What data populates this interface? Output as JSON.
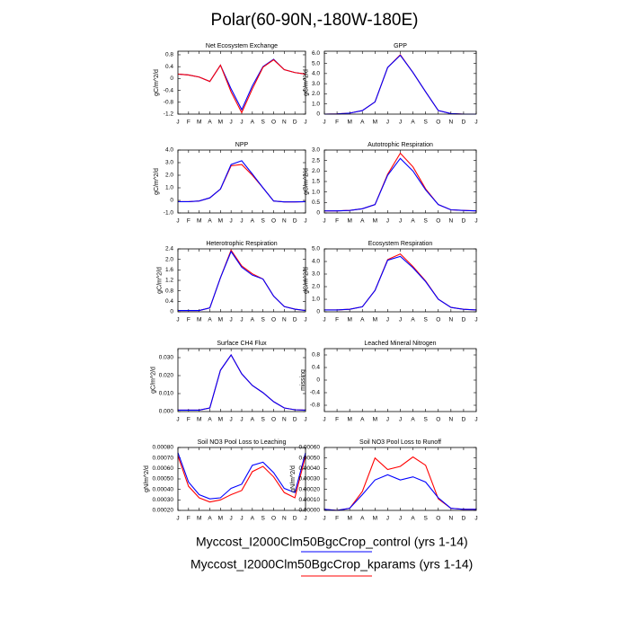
{
  "title": "Polar(60-90N,-180W-180E)",
  "chart_data": [
    {
      "type": "line",
      "title": "Net Ecosystem Exchange",
      "ylabel": "gC/m^2/d",
      "categories": [
        "J",
        "F",
        "M",
        "A",
        "M",
        "J",
        "J",
        "A",
        "S",
        "O",
        "N",
        "D",
        "J"
      ],
      "ylim": [
        -1.2,
        0.92
      ],
      "yticks": [
        -1.2,
        -0.8,
        -0.4,
        0,
        0.4,
        0.8
      ],
      "series": [
        {
          "name": "Myccost_I2000Clm50BgcCrop_control (yrs 1-14)",
          "color": "#0000ff",
          "values": [
            0.15,
            0.12,
            0.05,
            -0.1,
            0.45,
            -0.35,
            -1.05,
            -0.25,
            0.4,
            0.65,
            0.3,
            0.2,
            0.15
          ]
        },
        {
          "name": "Myccost_I2000Clm50BgcCrop_kparams (yrs 1-14)",
          "color": "#ff0000",
          "values": [
            0.15,
            0.12,
            0.05,
            -0.1,
            0.45,
            -0.45,
            -1.15,
            -0.35,
            0.38,
            0.63,
            0.3,
            0.2,
            0.15
          ]
        }
      ]
    },
    {
      "type": "line",
      "title": "GPP",
      "ylabel": "gC/m^2/d",
      "categories": [
        "J",
        "F",
        "M",
        "A",
        "M",
        "J",
        "J",
        "A",
        "S",
        "O",
        "N",
        "D",
        "J"
      ],
      "ylim": [
        0,
        6.2
      ],
      "yticks": [
        0,
        {
          "value": 1,
          "label": "1.0"
        },
        {
          "value": 2,
          "label": "2.0"
        },
        {
          "value": 3,
          "label": "3.0"
        },
        {
          "value": 4,
          "label": "4.0"
        },
        {
          "value": 5,
          "label": "5.0"
        },
        {
          "value": 6,
          "label": "6.0"
        }
      ],
      "series": [
        {
          "color": "#ff0000",
          "values": [
            0,
            0.02,
            0.1,
            0.35,
            1.2,
            4.6,
            5.85,
            4.1,
            2.2,
            0.35,
            0.05,
            0,
            0
          ]
        },
        {
          "color": "#0000ff",
          "values": [
            0,
            0.02,
            0.1,
            0.35,
            1.2,
            4.6,
            5.8,
            4.1,
            2.2,
            0.35,
            0.05,
            0,
            0
          ]
        }
      ]
    },
    {
      "type": "line",
      "title": "NPP",
      "ylabel": "gC/m^2/d",
      "categories": [
        "J",
        "F",
        "M",
        "A",
        "M",
        "J",
        "J",
        "A",
        "S",
        "O",
        "N",
        "D",
        "J"
      ],
      "ylim": [
        -1,
        4
      ],
      "yticks": [
        {
          "value": -1,
          "label": "-1.0"
        },
        0,
        {
          "value": 1,
          "label": "1.0"
        },
        {
          "value": 2,
          "label": "2.0"
        },
        {
          "value": 3,
          "label": "3.0"
        },
        {
          "value": 4,
          "label": "4.0"
        }
      ],
      "series": [
        {
          "color": "#ff0000",
          "values": [
            -0.1,
            -0.1,
            -0.05,
            0.2,
            0.9,
            2.75,
            2.85,
            2.0,
            1.0,
            -0.05,
            -0.12,
            -0.12,
            -0.1
          ]
        },
        {
          "color": "#0000ff",
          "values": [
            -0.1,
            -0.1,
            -0.05,
            0.2,
            0.9,
            2.85,
            3.15,
            2.1,
            1.0,
            -0.05,
            -0.12,
            -0.12,
            -0.1
          ]
        }
      ]
    },
    {
      "type": "line",
      "title": "Autotrophic Respiration",
      "ylabel": "gC/m^2/d",
      "categories": [
        "J",
        "F",
        "M",
        "A",
        "M",
        "J",
        "J",
        "A",
        "S",
        "O",
        "N",
        "D",
        "J"
      ],
      "ylim": [
        0,
        3
      ],
      "yticks": [
        0,
        0.5,
        {
          "value": 1,
          "label": "1.0"
        },
        1.5,
        {
          "value": 2,
          "label": "2.0"
        },
        2.5,
        {
          "value": 3,
          "label": "3.0"
        }
      ],
      "series": [
        {
          "color": "#ff0000",
          "values": [
            0.1,
            0.1,
            0.12,
            0.2,
            0.4,
            1.85,
            2.85,
            2.2,
            1.15,
            0.4,
            0.15,
            0.12,
            0.1
          ]
        },
        {
          "color": "#0000ff",
          "values": [
            0.1,
            0.1,
            0.12,
            0.2,
            0.4,
            1.8,
            2.6,
            2.0,
            1.1,
            0.4,
            0.15,
            0.12,
            0.1
          ]
        }
      ]
    },
    {
      "type": "line",
      "title": "Heterotrophic Respiration",
      "ylabel": "gC/m^2/d",
      "categories": [
        "J",
        "F",
        "M",
        "A",
        "M",
        "J",
        "J",
        "A",
        "S",
        "O",
        "N",
        "D",
        "J"
      ],
      "ylim": [
        0,
        2.4
      ],
      "yticks": [
        0,
        0.4,
        0.8,
        1.2,
        1.6,
        {
          "value": 2,
          "label": "2.0"
        },
        2.4
      ],
      "series": [
        {
          "color": "#ff0000",
          "values": [
            0.05,
            0.05,
            0.05,
            0.15,
            1.3,
            2.35,
            1.75,
            1.45,
            1.25,
            0.6,
            0.2,
            0.1,
            0.05
          ]
        },
        {
          "color": "#0000ff",
          "values": [
            0.05,
            0.05,
            0.05,
            0.15,
            1.3,
            2.3,
            1.7,
            1.4,
            1.25,
            0.6,
            0.2,
            0.1,
            0.05
          ]
        }
      ]
    },
    {
      "type": "line",
      "title": "Ecosystem Respiration",
      "ylabel": "gC/m^2/d",
      "categories": [
        "J",
        "F",
        "M",
        "A",
        "M",
        "J",
        "J",
        "A",
        "S",
        "O",
        "N",
        "D",
        "J"
      ],
      "ylim": [
        0,
        5
      ],
      "yticks": [
        0,
        {
          "value": 1,
          "label": "1.0"
        },
        {
          "value": 2,
          "label": "2.0"
        },
        {
          "value": 3,
          "label": "3.0"
        },
        {
          "value": 4,
          "label": "4.0"
        },
        {
          "value": 5,
          "label": "5.0"
        }
      ],
      "series": [
        {
          "color": "#ff0000",
          "values": [
            0.15,
            0.15,
            0.2,
            0.4,
            1.7,
            4.15,
            4.6,
            3.6,
            2.45,
            1.0,
            0.35,
            0.2,
            0.15
          ]
        },
        {
          "color": "#0000ff",
          "values": [
            0.15,
            0.15,
            0.2,
            0.4,
            1.7,
            4.1,
            4.4,
            3.5,
            2.4,
            1.0,
            0.35,
            0.2,
            0.15
          ]
        }
      ]
    },
    {
      "type": "line",
      "title": "Surface CH4 Flux",
      "ylabel": "gC/m^2/d",
      "categories": [
        "J",
        "F",
        "M",
        "A",
        "M",
        "J",
        "J",
        "A",
        "S",
        "O",
        "N",
        "D",
        "J"
      ],
      "ylim": [
        0,
        0.035
      ],
      "yticks": [
        {
          "value": 0,
          "label": "0.000"
        },
        {
          "value": 0.01,
          "label": "0.010"
        },
        {
          "value": 0.02,
          "label": "0.020"
        },
        {
          "value": 0.03,
          "label": "0.030"
        }
      ],
      "series": [
        {
          "color": "#ff0000",
          "values": [
            0.0008,
            0.0008,
            0.0008,
            0.002,
            0.023,
            0.0315,
            0.021,
            0.0145,
            0.0105,
            0.0055,
            0.002,
            0.001,
            0.0008
          ]
        },
        {
          "color": "#0000ff",
          "values": [
            0.0008,
            0.0008,
            0.0008,
            0.002,
            0.023,
            0.0315,
            0.021,
            0.0145,
            0.0105,
            0.0055,
            0.002,
            0.001,
            0.0008
          ]
        }
      ]
    },
    {
      "type": "line",
      "title": "Leached Mineral Nitrogen",
      "ylabel": "missing",
      "categories": [
        "J",
        "F",
        "M",
        "A",
        "M",
        "J",
        "J",
        "A",
        "S",
        "O",
        "N",
        "D",
        "J"
      ],
      "ylim": [
        -1,
        1
      ],
      "yticks": [
        -0.8,
        -0.4,
        0,
        0.4,
        0.8
      ],
      "series": []
    },
    {
      "type": "line",
      "title": "Soil NO3 Pool Loss to Leaching",
      "ylabel": "gN/m^2/d",
      "categories": [
        "J",
        "F",
        "M",
        "A",
        "M",
        "J",
        "J",
        "A",
        "S",
        "O",
        "N",
        "D",
        "J"
      ],
      "ylim": [
        0.0002,
        0.0008
      ],
      "yticks": [
        {
          "value": 0.0002,
          "label": "0.00020"
        },
        {
          "value": 0.0003,
          "label": "0.00030"
        },
        {
          "value": 0.0004,
          "label": "0.00040"
        },
        {
          "value": 0.0005,
          "label": "0.00050"
        },
        {
          "value": 0.0006,
          "label": "0.00060"
        },
        {
          "value": 0.0007,
          "label": "0.00070"
        },
        {
          "value": 0.0008,
          "label": "0.00080"
        }
      ],
      "series": [
        {
          "color": "#ff0000",
          "values": [
            0.00072,
            0.00043,
            0.00032,
            0.00028,
            0.0003,
            0.00035,
            0.00039,
            0.00057,
            0.00062,
            0.00052,
            0.00037,
            0.00032,
            0.00072
          ]
        },
        {
          "color": "#0000ff",
          "values": [
            0.00075,
            0.00047,
            0.00035,
            0.00031,
            0.00032,
            0.00041,
            0.00045,
            0.00063,
            0.00066,
            0.00056,
            0.00041,
            0.00037,
            0.00075
          ]
        }
      ]
    },
    {
      "type": "line",
      "title": "Soil NO3 Pool Loss to Runoff",
      "ylabel": "gN/m^2/d",
      "categories": [
        "J",
        "F",
        "M",
        "A",
        "M",
        "J",
        "J",
        "A",
        "S",
        "O",
        "N",
        "D",
        "J"
      ],
      "ylim": [
        0,
        0.0006
      ],
      "yticks": [
        {
          "value": 0,
          "label": "0.00000"
        },
        {
          "value": 0.0001,
          "label": "0.00010"
        },
        {
          "value": 0.0002,
          "label": "0.00020"
        },
        {
          "value": 0.0003,
          "label": "0.00030"
        },
        {
          "value": 0.0004,
          "label": "0.00040"
        },
        {
          "value": 0.0005,
          "label": "0.00050"
        },
        {
          "value": 0.0006,
          "label": "0.00060"
        }
      ],
      "series": [
        {
          "color": "#ff0000",
          "values": [
            1e-05,
            0,
            2e-05,
            0.00018,
            0.0005,
            0.00039,
            0.00042,
            0.00051,
            0.00043,
            0.00011,
            2e-05,
            1e-05,
            1e-05
          ]
        },
        {
          "color": "#0000ff",
          "values": [
            1e-05,
            0,
            2e-05,
            0.00015,
            0.00029,
            0.00034,
            0.00029,
            0.00032,
            0.00027,
            0.00012,
            2e-05,
            1e-05,
            1e-05
          ]
        }
      ]
    }
  ]
}
